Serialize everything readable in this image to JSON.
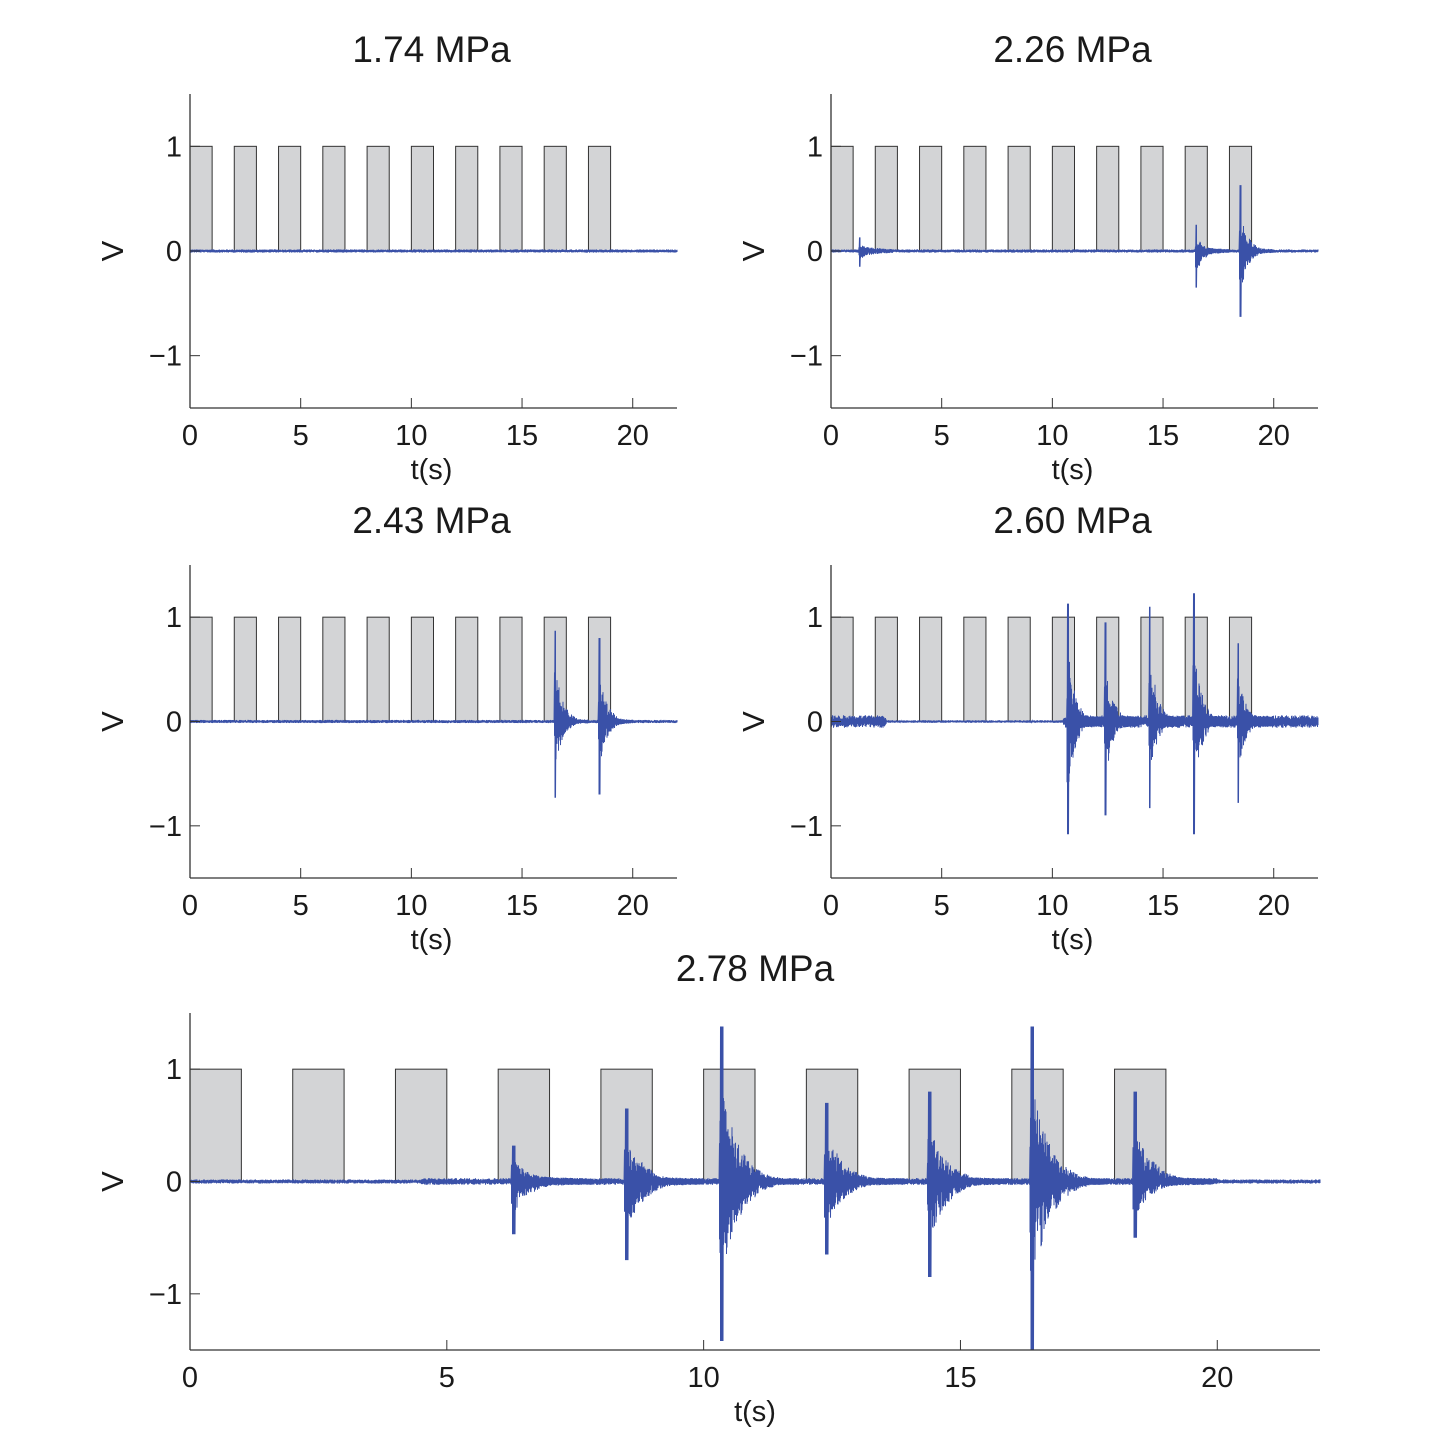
{
  "chart_data": [
    {
      "type": "line",
      "title": "1.74 MPa",
      "xlabel": "t(s)",
      "ylabel": "V",
      "xlim": [
        0,
        22
      ],
      "ylim": [
        -1.5,
        1.5
      ],
      "xticks": [
        0,
        5,
        10,
        15,
        20
      ],
      "yticks": [
        -1,
        0,
        1
      ],
      "xtick_labels": [
        "0",
        "5",
        "10",
        "15",
        "20"
      ],
      "ytick_labels": [
        "−1",
        "0",
        "1"
      ],
      "pulses": {
        "on_intervals_s": [
          [
            0,
            1
          ],
          [
            2,
            3
          ],
          [
            4,
            5
          ],
          [
            6,
            7
          ],
          [
            8,
            9
          ],
          [
            10,
            11
          ],
          [
            12,
            13
          ],
          [
            14,
            15
          ],
          [
            16,
            17
          ],
          [
            18,
            19
          ]
        ],
        "amplitude": 1,
        "color": "#d3d4d6"
      },
      "signal": {
        "color": "#3a51a8",
        "baseline_noise": 0.01,
        "bursts": []
      }
    },
    {
      "type": "line",
      "title": "2.26 MPa",
      "xlabel": "t(s)",
      "ylabel": "V",
      "xlim": [
        0,
        22
      ],
      "ylim": [
        -1.5,
        1.5
      ],
      "xticks": [
        0,
        5,
        10,
        15,
        20
      ],
      "yticks": [
        -1,
        0,
        1
      ],
      "xtick_labels": [
        "0",
        "5",
        "10",
        "15",
        "20"
      ],
      "ytick_labels": [
        "−1",
        "0",
        "1"
      ],
      "pulses": {
        "on_intervals_s": [
          [
            0,
            1
          ],
          [
            2,
            3
          ],
          [
            4,
            5
          ],
          [
            6,
            7
          ],
          [
            8,
            9
          ],
          [
            10,
            11
          ],
          [
            12,
            13
          ],
          [
            14,
            15
          ],
          [
            16,
            17
          ],
          [
            18,
            19
          ]
        ],
        "amplitude": 1,
        "color": "#d3d4d6"
      },
      "signal": {
        "color": "#3a51a8",
        "baseline_noise": 0.01,
        "bursts": [
          {
            "t": 1.3,
            "max": 0.13,
            "min": -0.15
          },
          {
            "t": 16.5,
            "max": 0.25,
            "min": -0.35
          },
          {
            "t": 18.5,
            "max": 0.63,
            "min": -0.63
          }
        ]
      }
    },
    {
      "type": "line",
      "title": "2.43 MPa",
      "xlabel": "t(s)",
      "ylabel": "V",
      "xlim": [
        0,
        22
      ],
      "ylim": [
        -1.5,
        1.5
      ],
      "xticks": [
        0,
        5,
        10,
        15,
        20
      ],
      "yticks": [
        -1,
        0,
        1
      ],
      "xtick_labels": [
        "0",
        "5",
        "10",
        "15",
        "20"
      ],
      "ytick_labels": [
        "−1",
        "0",
        "1"
      ],
      "pulses": {
        "on_intervals_s": [
          [
            0,
            1
          ],
          [
            2,
            3
          ],
          [
            4,
            5
          ],
          [
            6,
            7
          ],
          [
            8,
            9
          ],
          [
            10,
            11
          ],
          [
            12,
            13
          ],
          [
            14,
            15
          ],
          [
            16,
            17
          ],
          [
            18,
            19
          ]
        ],
        "amplitude": 1,
        "color": "#d3d4d6"
      },
      "signal": {
        "color": "#3a51a8",
        "baseline_noise": 0.01,
        "bursts": [
          {
            "t": 16.5,
            "max": 0.87,
            "min": -0.73
          },
          {
            "t": 18.5,
            "max": 0.8,
            "min": -0.7
          }
        ]
      }
    },
    {
      "type": "line",
      "title": "2.60 MPa",
      "xlabel": "t(s)",
      "ylabel": "V",
      "xlim": [
        0,
        22
      ],
      "ylim": [
        -1.5,
        1.5
      ],
      "xticks": [
        0,
        5,
        10,
        15,
        20
      ],
      "yticks": [
        -1,
        0,
        1
      ],
      "xtick_labels": [
        "0",
        "5",
        "10",
        "15",
        "20"
      ],
      "ytick_labels": [
        "−1",
        "0",
        "1"
      ],
      "pulses": {
        "on_intervals_s": [
          [
            0,
            1
          ],
          [
            2,
            3
          ],
          [
            4,
            5
          ],
          [
            6,
            7
          ],
          [
            8,
            9
          ],
          [
            10,
            11
          ],
          [
            12,
            13
          ],
          [
            14,
            15
          ],
          [
            16,
            17
          ],
          [
            18,
            19
          ]
        ],
        "amplitude": 1,
        "color": "#d3d4d6"
      },
      "signal": {
        "color": "#3a51a8",
        "baseline_noise": 0.04,
        "bursts": [
          {
            "t": 10.7,
            "max": 1.13,
            "min": -1.08
          },
          {
            "t": 12.4,
            "max": 0.95,
            "min": -0.9
          },
          {
            "t": 14.4,
            "max": 1.1,
            "min": -0.83
          },
          {
            "t": 16.4,
            "max": 1.23,
            "min": -1.08
          },
          {
            "t": 18.4,
            "max": 0.75,
            "min": -0.78
          }
        ]
      }
    },
    {
      "type": "line",
      "title": "2.78 MPa",
      "xlabel": "t(s)",
      "ylabel": "V",
      "xlim": [
        0,
        22
      ],
      "ylim": [
        -1.5,
        1.5
      ],
      "xticks": [
        0,
        5,
        10,
        15,
        20
      ],
      "yticks": [
        -1,
        0,
        1
      ],
      "xtick_labels": [
        "0",
        "5",
        "10",
        "15",
        "20"
      ],
      "ytick_labels": [
        "−1",
        "0",
        "1"
      ],
      "pulses": {
        "on_intervals_s": [
          [
            0,
            1
          ],
          [
            2,
            3
          ],
          [
            4,
            5
          ],
          [
            6,
            7
          ],
          [
            8,
            9
          ],
          [
            10,
            11
          ],
          [
            12,
            13
          ],
          [
            14,
            15
          ],
          [
            16,
            17
          ],
          [
            18,
            19
          ]
        ],
        "amplitude": 1,
        "color": "#d3d4d6"
      },
      "signal": {
        "color": "#3a51a8",
        "baseline_noise": 0.012,
        "bursts": [
          {
            "t": 6.3,
            "max": 0.32,
            "min": -0.47
          },
          {
            "t": 8.5,
            "max": 0.65,
            "min": -0.7
          },
          {
            "t": 10.35,
            "max": 1.38,
            "min": -1.42
          },
          {
            "t": 12.4,
            "max": 0.7,
            "min": -0.65
          },
          {
            "t": 14.4,
            "max": 0.8,
            "min": -0.85
          },
          {
            "t": 16.4,
            "max": 1.38,
            "min": -1.5
          },
          {
            "t": 18.4,
            "max": 0.8,
            "min": -0.5
          }
        ]
      }
    }
  ]
}
